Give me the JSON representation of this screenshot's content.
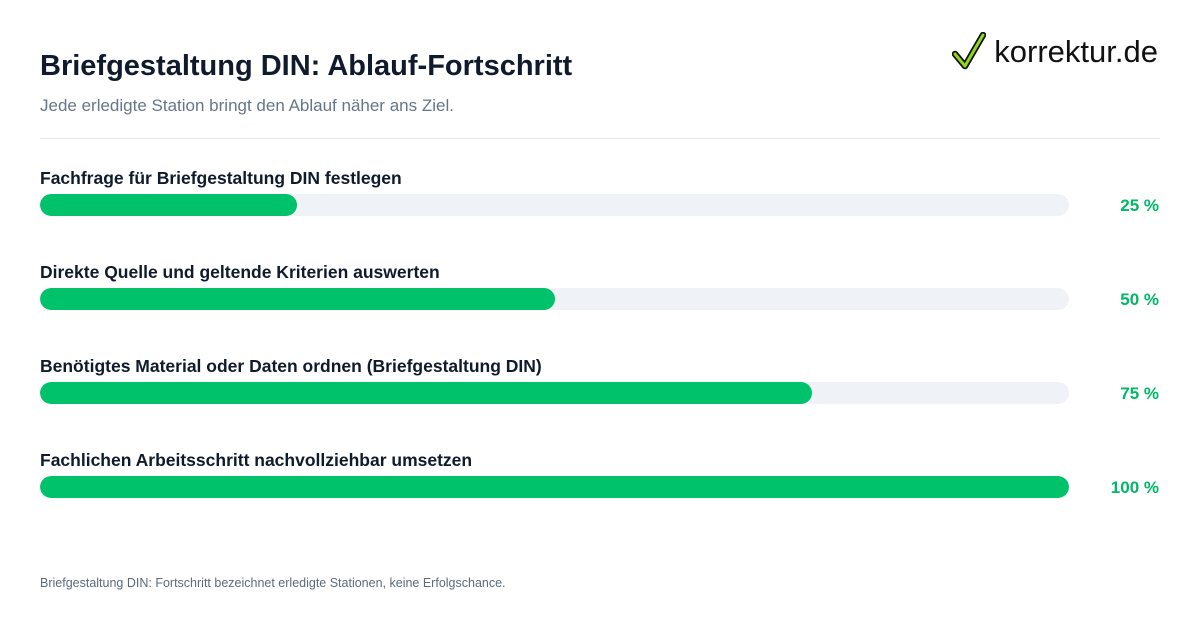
{
  "header": {
    "title": "Briefgestaltung DIN: Ablauf-Fortschritt",
    "subtitle": "Jede erledigte Station bringt den Ablauf näher ans Ziel.",
    "logo_text": "korrektur.de",
    "logo_icon": "checkmark-icon"
  },
  "colors": {
    "accent": "#00c26b",
    "track": "#eff3f8",
    "text": "#0f1b2d",
    "muted": "#66768a"
  },
  "chart_data": {
    "type": "bar",
    "orientation": "horizontal",
    "title": "Briefgestaltung DIN: Ablauf-Fortschritt",
    "subtitle": "Jede erledigte Station bringt den Ablauf näher ans Ziel.",
    "xlim": [
      0,
      100
    ],
    "unit": "%",
    "categories": [
      "Fachfrage für Briefgestaltung DIN festlegen",
      "Direkte Quelle und geltende Kriterien auswerten",
      "Benötigtes Material oder Daten ordnen (Briefgestaltung DIN)",
      "Fachlichen Arbeitsschritt nachvollziehbar umsetzen"
    ],
    "values": [
      25,
      50,
      75,
      100
    ],
    "value_labels": [
      "25 %",
      "50 %",
      "75 %",
      "100 %"
    ]
  },
  "footnote": "Briefgestaltung DIN: Fortschritt bezeichnet erledigte Stationen, keine Erfolgschance."
}
